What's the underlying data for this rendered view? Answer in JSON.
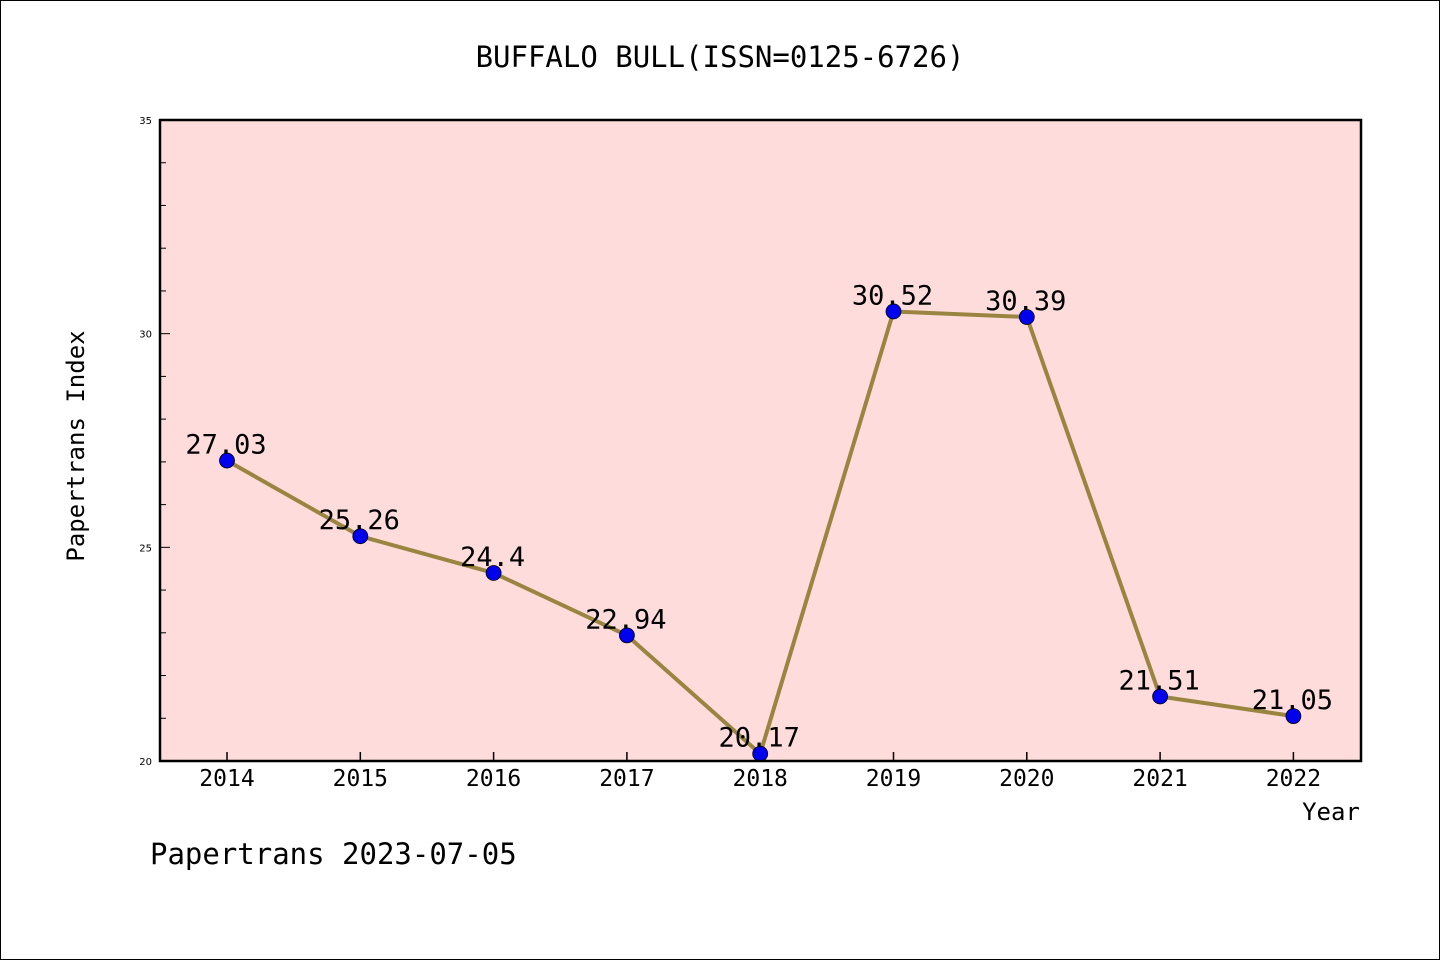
{
  "chart_data": {
    "type": "line",
    "title": "BUFFALO BULL(ISSN=0125-6726)",
    "xlabel": "Year",
    "ylabel": "Papertrans Index",
    "categories": [
      "2014",
      "2015",
      "2016",
      "2017",
      "2018",
      "2019",
      "2020",
      "2021",
      "2022"
    ],
    "series": [
      {
        "values": [
          27.03,
          25.26,
          24.4,
          22.94,
          20.17,
          30.52,
          30.39,
          21.51,
          21.05
        ],
        "labels": [
          "27.03",
          "25.26",
          "24.4",
          "22.94",
          "20.17",
          "30.52",
          "30.39",
          "21.51",
          "21.05"
        ]
      }
    ],
    "ylim": [
      20,
      35
    ],
    "yticks": [
      "20",
      "25",
      "30",
      "35"
    ],
    "grid": false,
    "legend": "none",
    "colors": {
      "plot_bg": "#ffdcdc",
      "line": "#9a8540",
      "marker": "#0000ee"
    }
  },
  "footer": {
    "caption": "Papertrans 2023-07-05"
  }
}
